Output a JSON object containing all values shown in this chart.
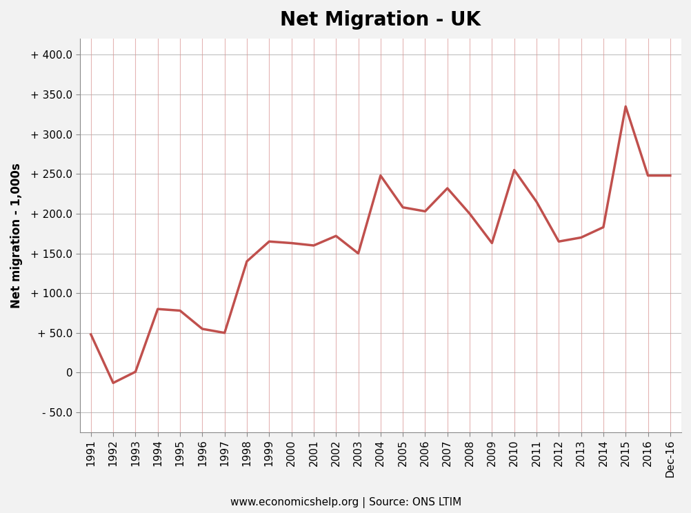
{
  "title": "Net Migration - UK",
  "ylabel": "Net migration - 1,000s",
  "footer": "www.economicshelp.org | Source: ONS LTIM",
  "xlabels": [
    "1991",
    "1992",
    "1993",
    "1994",
    "1995",
    "1996",
    "1997",
    "1998",
    "1999",
    "2000",
    "2001",
    "2002",
    "2003",
    "2004",
    "2005",
    "2006",
    "2007",
    "2008",
    "2009",
    "2010",
    "2011",
    "2012",
    "2013",
    "2014",
    "2015",
    "2016",
    "Dec-16"
  ],
  "values": [
    48,
    -13,
    1,
    80,
    78,
    55,
    50,
    140,
    165,
    163,
    160,
    172,
    150,
    248,
    208,
    203,
    232,
    200,
    163,
    255,
    215,
    165,
    170,
    183,
    335,
    248,
    248
  ],
  "line_color": "#c0504d",
  "vgrid_color": "#d99694",
  "hgrid_color": "#c0c0c0",
  "background_color": "#ffffff",
  "outer_background": "#f2f2f2",
  "ylim_min": -75,
  "ylim_max": 420,
  "yticks": [
    -50,
    0,
    50,
    100,
    150,
    200,
    250,
    300,
    350,
    400
  ],
  "ytick_labels": [
    "- 50.0",
    "0",
    "+ 50.0",
    "+ 100.0",
    "+ 150.0",
    "+ 200.0",
    "+ 250.0",
    "+ 300.0",
    "+ 350.0",
    "+ 400.0"
  ],
  "title_fontsize": 20,
  "axis_label_fontsize": 12,
  "tick_fontsize": 11,
  "footer_fontsize": 11,
  "linewidth": 2.5
}
